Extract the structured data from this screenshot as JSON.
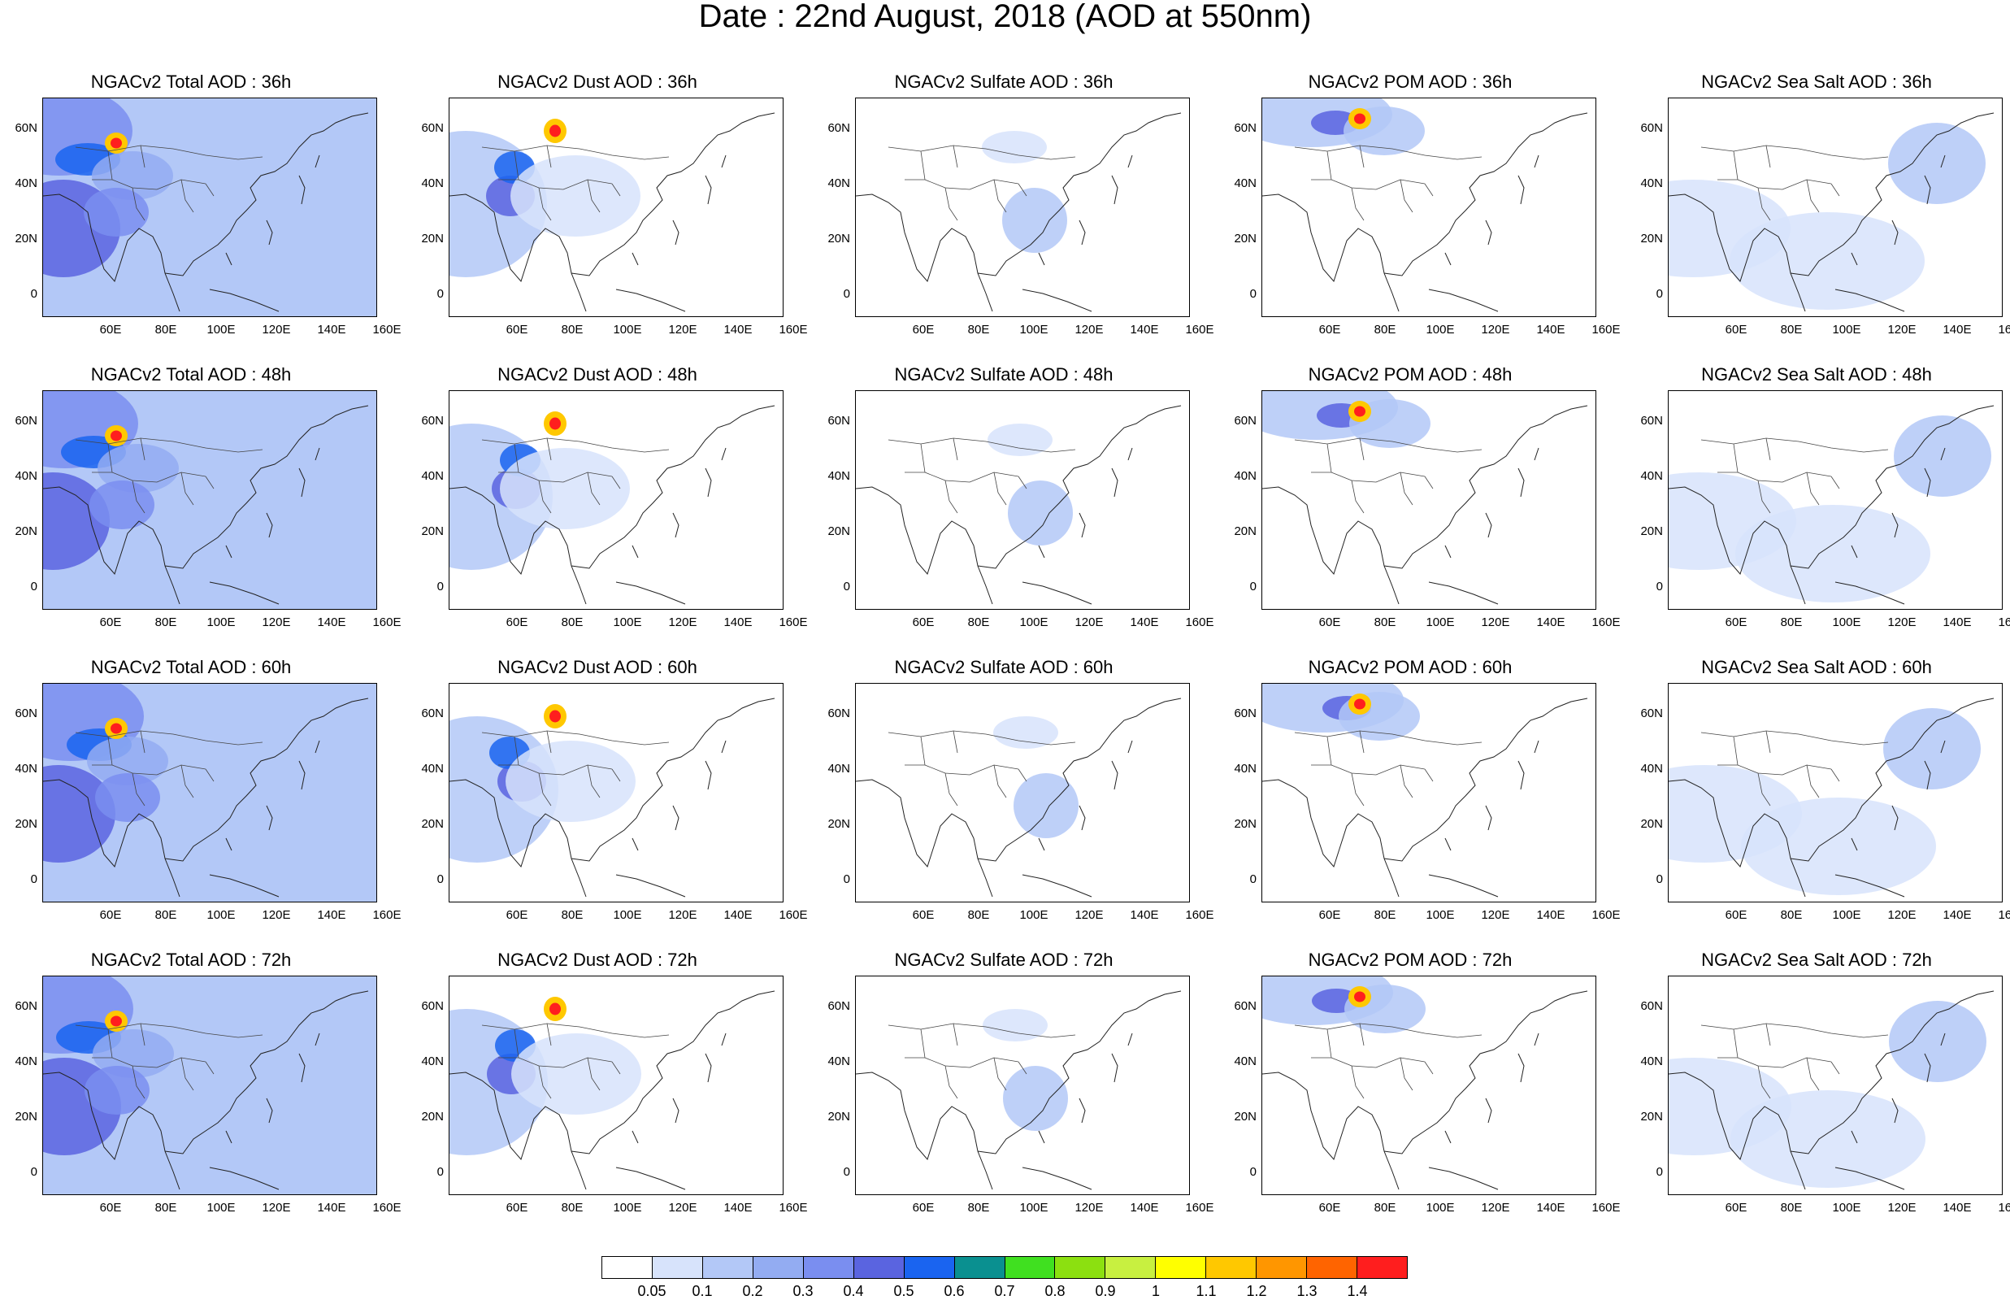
{
  "title": "Date : 22nd August, 2018 (AOD at 550nm)",
  "y_ticks": [
    "60N",
    "40N",
    "20N",
    "0"
  ],
  "x_ticks": [
    "60E",
    "80E",
    "100E",
    "120E",
    "140E",
    "160E"
  ],
  "panels": [
    [
      "NGACv2 Total AOD : 36h",
      "NGACv2 Dust AOD : 36h",
      "NGACv2 Sulfate AOD : 36h",
      "NGACv2 POM AOD : 36h",
      "NGACv2 Sea Salt AOD : 36h"
    ],
    [
      "NGACv2 Total AOD : 48h",
      "NGACv2 Dust AOD : 48h",
      "NGACv2 Sulfate AOD : 48h",
      "NGACv2 POM AOD : 48h",
      "NGACv2 Sea Salt AOD : 48h"
    ],
    [
      "NGACv2 Total AOD : 60h",
      "NGACv2 Dust AOD : 60h",
      "NGACv2 Sulfate AOD : 60h",
      "NGACv2 POM AOD : 60h",
      "NGACv2 Sea Salt AOD : 60h"
    ],
    [
      "NGACv2 Total AOD : 72h",
      "NGACv2 Dust AOD : 72h",
      "NGACv2 Sulfate AOD : 72h",
      "NGACv2 POM AOD : 72h",
      "NGACv2 Sea Salt  AOD : 72h"
    ]
  ],
  "colorbar": {
    "labels": [
      "0.05",
      "0.1",
      "0.2",
      "0.3",
      "0.4",
      "0.5",
      "0.6",
      "0.7",
      "0.8",
      "0.9",
      "1",
      "1.1",
      "1.2",
      "1.3",
      "1.4"
    ],
    "colors": [
      "#ffffff",
      "#d7e3fb",
      "#b3c8f7",
      "#93acf2",
      "#7a8ef0",
      "#5a64e0",
      "#1a64f0",
      "#0a9090",
      "#40e020",
      "#8ce010",
      "#c8f040",
      "#ffff00",
      "#ffc800",
      "#ff9600",
      "#ff6400",
      "#ff1e1e"
    ]
  }
}
